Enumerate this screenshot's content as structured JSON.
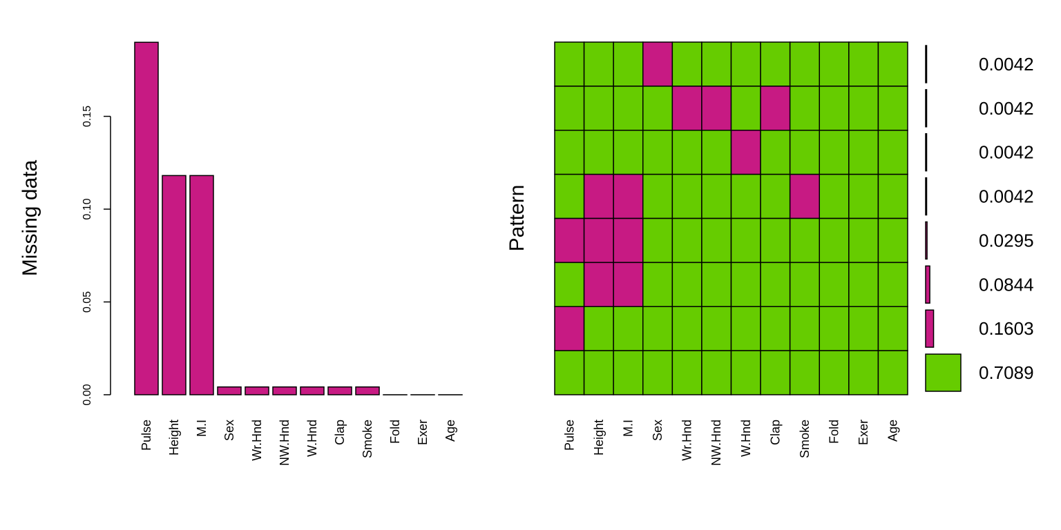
{
  "colors": {
    "missing": "#c71a83",
    "observed": "#66cc00",
    "outline": "#000000"
  },
  "chart_data": [
    {
      "type": "bar",
      "ylabel": "Missing data",
      "categories": [
        "Pulse",
        "Height",
        "M.I",
        "Sex",
        "Wr.Hnd",
        "NW.Hnd",
        "W.Hnd",
        "Clap",
        "Smoke",
        "Fold",
        "Exer",
        "Age"
      ],
      "values": [
        0.1899,
        0.1181,
        0.1181,
        0.0042,
        0.0042,
        0.0042,
        0.0042,
        0.0042,
        0.0042,
        0.0,
        0.0,
        0.0
      ],
      "ylim": [
        0,
        0.19
      ],
      "yticks": [
        "0.00",
        "0.05",
        "0.10",
        "0.15"
      ],
      "ytick_values": [
        0,
        0.05,
        0.1,
        0.15
      ]
    },
    {
      "type": "heatmap",
      "ylabel": "Pattern",
      "columns": [
        "Pulse",
        "Height",
        "M.I",
        "Sex",
        "Wr.Hnd",
        "NW.Hnd",
        "W.Hnd",
        "Clap",
        "Smoke",
        "Fold",
        "Exer",
        "Age"
      ],
      "patterns": [
        [
          0,
          0,
          0,
          1,
          0,
          0,
          0,
          0,
          0,
          0,
          0,
          0
        ],
        [
          0,
          0,
          0,
          0,
          1,
          1,
          0,
          1,
          0,
          0,
          0,
          0
        ],
        [
          0,
          0,
          0,
          0,
          0,
          0,
          1,
          0,
          0,
          0,
          0,
          0
        ],
        [
          0,
          1,
          1,
          0,
          0,
          0,
          0,
          0,
          1,
          0,
          0,
          0
        ],
        [
          1,
          1,
          1,
          0,
          0,
          0,
          0,
          0,
          0,
          0,
          0,
          0
        ],
        [
          0,
          1,
          1,
          0,
          0,
          0,
          0,
          0,
          0,
          0,
          0,
          0
        ],
        [
          1,
          0,
          0,
          0,
          0,
          0,
          0,
          0,
          0,
          0,
          0,
          0
        ],
        [
          0,
          0,
          0,
          0,
          0,
          0,
          0,
          0,
          0,
          0,
          0,
          0
        ]
      ],
      "proportions": [
        0.0042,
        0.0042,
        0.0042,
        0.0042,
        0.0295,
        0.0844,
        0.1603,
        0.7089
      ],
      "proportion_labels": [
        "0.0042",
        "0.0042",
        "0.0042",
        "0.0042",
        "0.0295",
        "0.0844",
        "0.1603",
        "0.7089"
      ]
    }
  ]
}
